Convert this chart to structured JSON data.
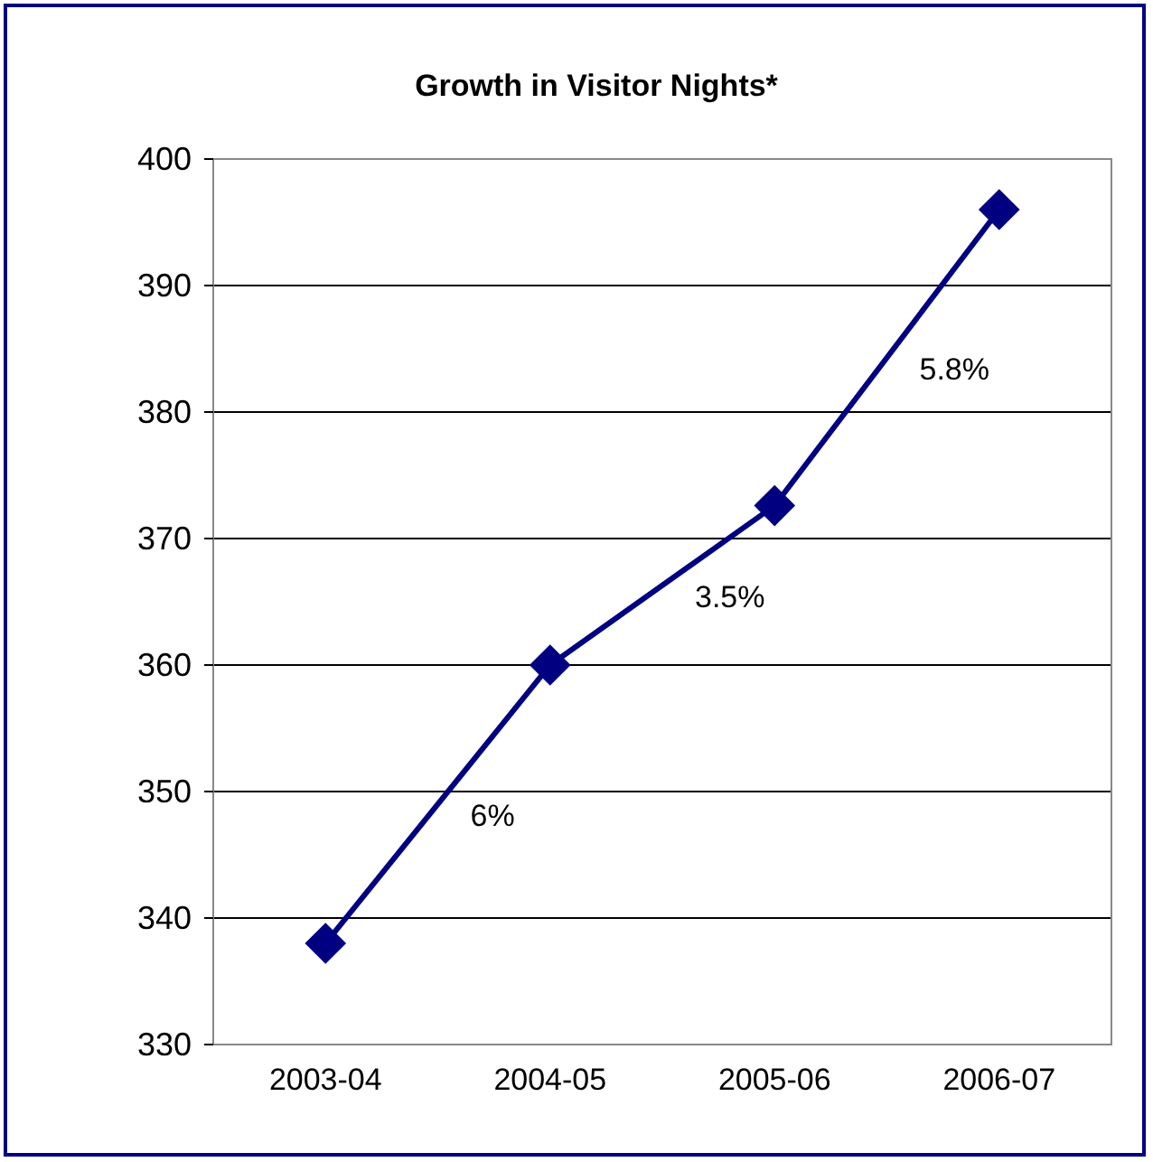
{
  "chart_data": {
    "type": "line",
    "title": "Growth in Visitor Nights*",
    "categories": [
      "2003-04",
      "2004-05",
      "2005-06",
      "2006-07"
    ],
    "series": [
      {
        "color": "#000080",
        "values": [
          338,
          360,
          372.6,
          396
        ]
      }
    ],
    "ylim": [
      330,
      400
    ],
    "yticks": [
      330,
      340,
      350,
      360,
      370,
      380,
      390,
      400
    ],
    "grid": "y",
    "marker": "diamond",
    "line_style": "solid",
    "annotations": [
      "6%",
      "3.5%",
      "5.8%"
    ]
  }
}
